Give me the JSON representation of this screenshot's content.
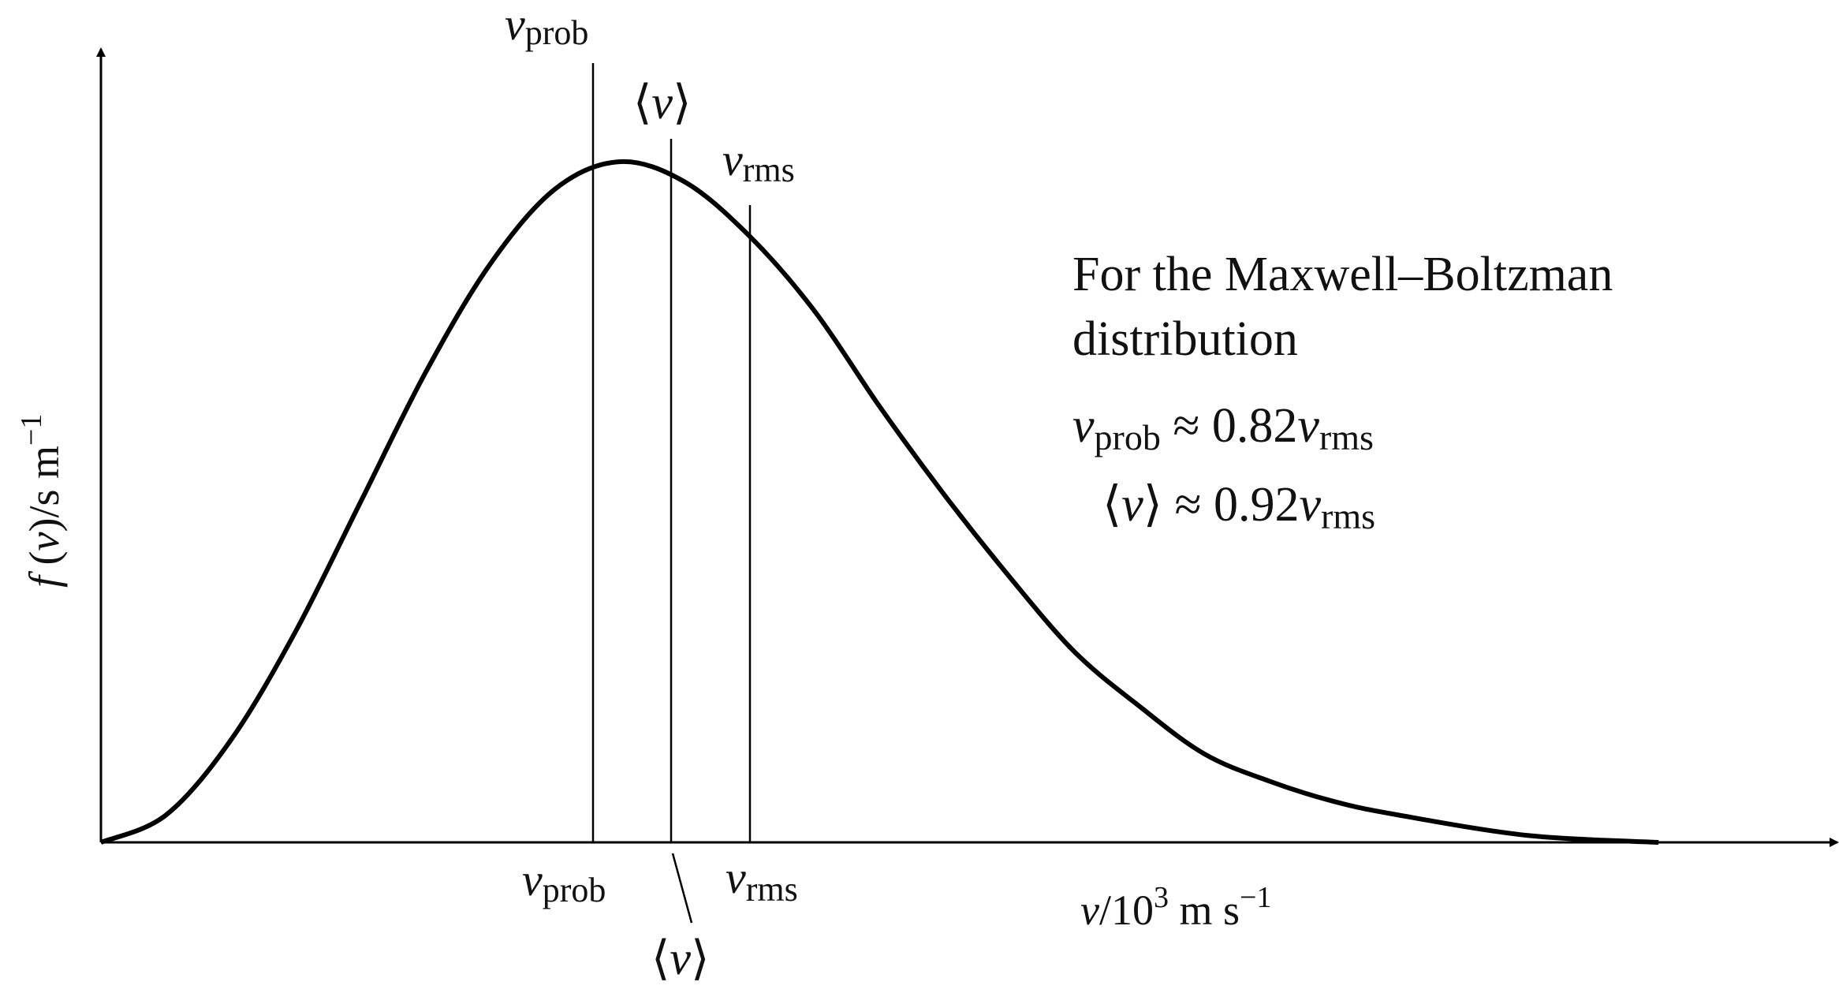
{
  "chart_data": {
    "type": "line",
    "title": "",
    "curve_description": "Maxwell-Boltzmann speed distribution",
    "x_axis": {
      "label_var": "v",
      "label_unit_pre": "/10",
      "label_exp": "3",
      "label_unit_post": " m s",
      "label_unit_exp": "−1",
      "ticks": []
    },
    "y_axis": {
      "label_func": "f",
      "label_open": " (",
      "label_var": "v",
      "label_close": ")",
      "label_unit": "/s m",
      "label_unit_exp": "−1",
      "ticks": []
    },
    "series": [
      {
        "x_unit": "v / v_rms",
        "x": [
          0,
          0.1,
          0.2,
          0.3,
          0.4,
          0.5,
          0.6,
          0.7,
          0.8,
          0.9,
          1.0,
          1.1,
          1.2,
          1.3,
          1.4,
          1.5,
          1.6,
          1.7,
          1.8,
          1.9,
          2.0,
          2.2,
          2.4
        ],
        "y_relative": [
          0,
          0.04,
          0.15,
          0.31,
          0.5,
          0.69,
          0.85,
          0.96,
          1.0,
          0.97,
          0.89,
          0.78,
          0.64,
          0.51,
          0.39,
          0.28,
          0.2,
          0.13,
          0.09,
          0.06,
          0.04,
          0.01,
          0.0
        ]
      }
    ],
    "markers": [
      {
        "key": "prob",
        "sym": "v",
        "sub": "prob",
        "x_ratio_rms": 0.82
      },
      {
        "key": "mean",
        "sym": "⟨v⟩",
        "open": "⟨",
        "var": "v",
        "close": "⟩",
        "x_ratio_rms": 0.92
      },
      {
        "key": "rms",
        "sym": "v",
        "sub": "rms",
        "x_ratio_rms": 1.0
      }
    ],
    "annotation": {
      "line1": "For the Maxwell–Boltzman",
      "line2": "distribution",
      "eq1": {
        "lhs_var": "v",
        "lhs_sub": "prob",
        "op": " ≈ 0.82",
        "rhs_var": "v",
        "rhs_sub": "rms"
      },
      "eq2": {
        "open": "⟨",
        "var": "v",
        "close": "⟩",
        "op": " ≈ 0.92",
        "rhs_var": "v",
        "rhs_sub": "rms"
      }
    },
    "grid": false,
    "legend": "none",
    "colors": {
      "line": "#000000",
      "text": "#111111"
    }
  }
}
